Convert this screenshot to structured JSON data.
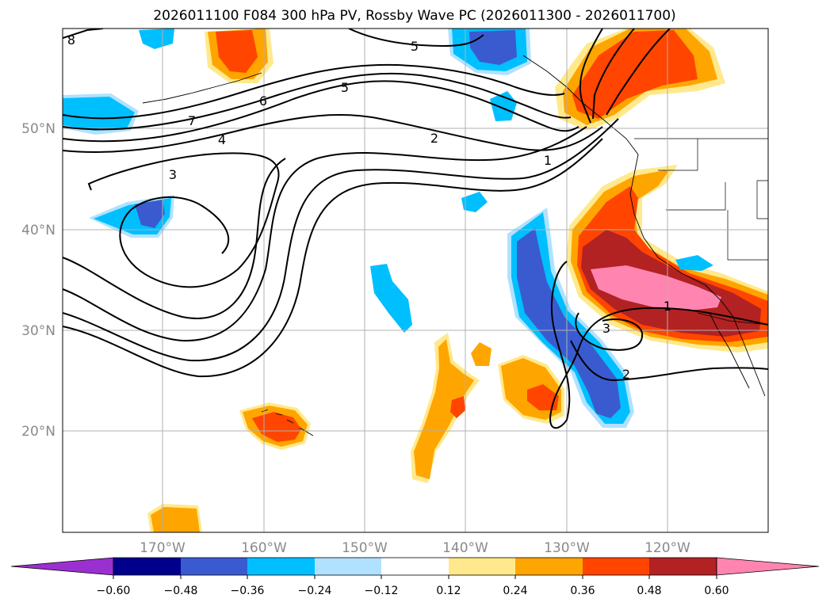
{
  "title": "2026011100 F084 300 hPa PV, Rossby Wave PC (2026011300 - 2026011700)",
  "map": {
    "lon_labels": [
      "170°W",
      "160°W",
      "150°W",
      "140°W",
      "130°W",
      "120°W"
    ],
    "lat_labels": [
      "50°N",
      "40°N",
      "30°N",
      "20°N"
    ]
  },
  "contour_labels": [
    "8",
    "7",
    "6",
    "5",
    "5",
    "4",
    "3",
    "2",
    "1",
    "1",
    "3",
    "2"
  ],
  "colorbar": {
    "ticks": [
      "−0.60",
      "−0.48",
      "−0.36",
      "−0.24",
      "−0.12",
      "0.12",
      "0.24",
      "0.36",
      "0.48",
      "0.60"
    ],
    "colors": [
      "#9b30d0",
      "#00008b",
      "#3a5bd0",
      "#00bfff",
      "#b0e2ff",
      "#ffffff",
      "#ffe98c",
      "#ffa500",
      "#ff4500",
      "#b22222",
      "#ff85b0"
    ]
  },
  "fill_colors": {
    "pos_1": "#ffe98c",
    "pos_2": "#ffa500",
    "pos_3": "#ff4500",
    "pos_4": "#b22222",
    "pos_5": "#ff85b0",
    "neg_1": "#b0e2ff",
    "neg_2": "#00bfff",
    "neg_3": "#3a5bd0"
  }
}
